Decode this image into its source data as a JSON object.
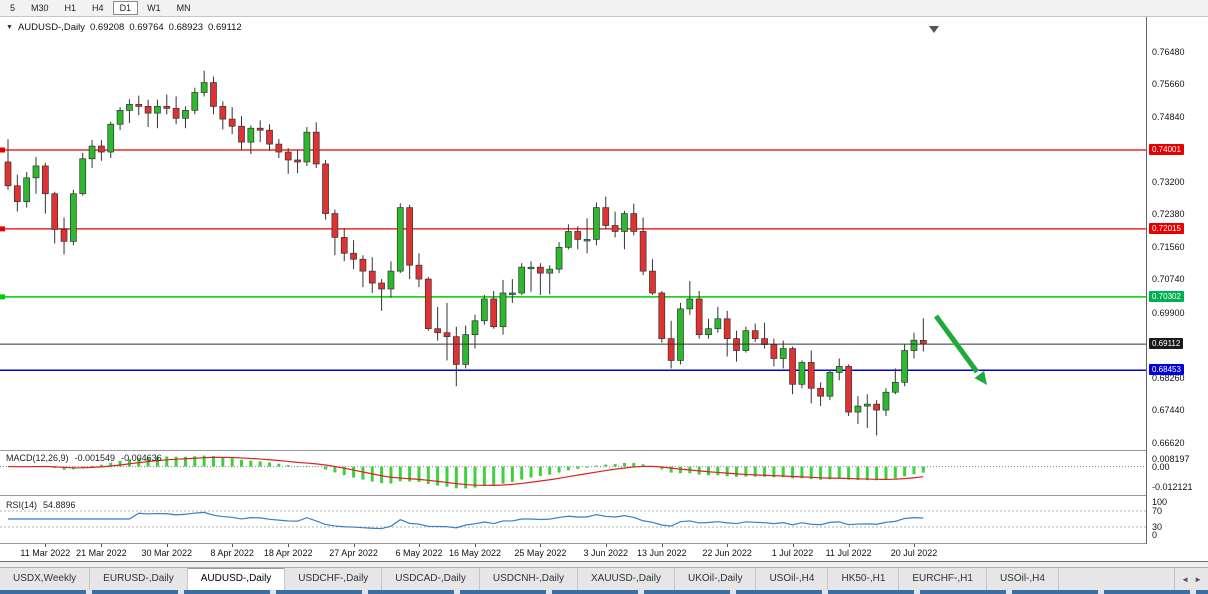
{
  "toolbar": {
    "timeframes": [
      {
        "label": "5",
        "selected": false
      },
      {
        "label": "M30",
        "selected": false
      },
      {
        "label": "H1",
        "selected": false
      },
      {
        "label": "H4",
        "selected": false
      },
      {
        "label": "D1",
        "selected": true
      },
      {
        "label": "W1",
        "selected": false
      },
      {
        "label": "MN",
        "selected": false
      }
    ]
  },
  "chart": {
    "header": {
      "dropdown_icon": "▼",
      "symbol": "AUDUSD-,Daily",
      "open": "0.69208",
      "high": "0.69764",
      "low": "0.68923",
      "close": "0.69112"
    },
    "colors": {
      "bull": "#2eb82e",
      "bear": "#e03232",
      "wick": "#333333",
      "macd": "#3fd03f",
      "signal": "#dd2222",
      "rsi": "#3b7dc4"
    },
    "price_axis": {
      "ticks": [
        "0.76480",
        "0.75660",
        "0.74840",
        "0.73200",
        "0.72380",
        "0.71560",
        "0.70740",
        "0.69900",
        "0.68260",
        "0.67440",
        "0.66620"
      ]
    },
    "levels": [
      {
        "label": "0.74001",
        "value": 0.74001,
        "color": "#e60000",
        "tag": "#e60000",
        "width": 1.2,
        "marker": true
      },
      {
        "label": "0.72015",
        "value": 0.72015,
        "color": "#e60000",
        "tag": "#e60000",
        "width": 1.2,
        "marker": true
      },
      {
        "label": "0.70302",
        "value": 0.70302,
        "color": "#00cc00",
        "tag": "#00b050",
        "width": 1.4,
        "marker": true
      },
      {
        "label": "0.69112",
        "value": 0.69112,
        "color": "#333333",
        "tag": "#1a1a1a",
        "width": 1,
        "above": true
      },
      {
        "label": "0.68453",
        "value": 0.68453,
        "color": "#0000d9",
        "tag": "#0000d9",
        "width": 1.5
      }
    ],
    "arrow": {
      "shape": "arrow",
      "direction": "down-right",
      "color": "#1faa3c"
    }
  },
  "chart_data": {
    "type": "candlestick",
    "title": "AUDUSD-,Daily",
    "symbol": "AUDUSD",
    "timeframe": "Daily",
    "candles": [
      [
        "7 Mar",
        0.737,
        0.7427,
        0.73,
        0.731
      ],
      [
        "8 Mar",
        0.731,
        0.7338,
        0.7245,
        0.727
      ],
      [
        "9 Mar",
        0.727,
        0.7345,
        0.7255,
        0.733
      ],
      [
        "10 Mar",
        0.733,
        0.7383,
        0.729,
        0.736
      ],
      [
        "11 Mar",
        0.736,
        0.7368,
        0.724,
        0.729
      ],
      [
        "14 Mar",
        0.729,
        0.7295,
        0.7165,
        0.72
      ],
      [
        "15 Mar",
        0.72,
        0.723,
        0.7137,
        0.717
      ],
      [
        "16 Mar",
        0.717,
        0.73,
        0.716,
        0.729
      ],
      [
        "17 Mar",
        0.729,
        0.7393,
        0.7285,
        0.7378
      ],
      [
        "18 Mar",
        0.7378,
        0.7425,
        0.7355,
        0.741
      ],
      [
        "21 Mar",
        0.741,
        0.7425,
        0.7373,
        0.7395
      ],
      [
        "22 Mar",
        0.7395,
        0.7471,
        0.738,
        0.7465
      ],
      [
        "23 Mar",
        0.7465,
        0.7508,
        0.745,
        0.75
      ],
      [
        "24 Mar",
        0.75,
        0.7528,
        0.7468,
        0.7515
      ],
      [
        "25 Mar",
        0.7515,
        0.7537,
        0.7488,
        0.751
      ],
      [
        "28 Mar",
        0.751,
        0.7527,
        0.7458,
        0.7493
      ],
      [
        "29 Mar",
        0.7493,
        0.7527,
        0.7455,
        0.751
      ],
      [
        "30 Mar",
        0.751,
        0.754,
        0.749,
        0.7505
      ],
      [
        "31 Mar",
        0.7505,
        0.7535,
        0.7465,
        0.748
      ],
      [
        "1 Apr",
        0.748,
        0.751,
        0.7455,
        0.75
      ],
      [
        "4 Apr",
        0.75,
        0.7557,
        0.749,
        0.7545
      ],
      [
        "5 Apr",
        0.7545,
        0.76,
        0.7535,
        0.757
      ],
      [
        "6 Apr",
        0.757,
        0.7585,
        0.749,
        0.751
      ],
      [
        "7 Apr",
        0.751,
        0.7523,
        0.7452,
        0.7478
      ],
      [
        "8 Apr",
        0.7478,
        0.7508,
        0.744,
        0.746
      ],
      [
        "11 Apr",
        0.746,
        0.7485,
        0.74,
        0.742
      ],
      [
        "12 Apr",
        0.742,
        0.7462,
        0.739,
        0.7455
      ],
      [
        "13 Apr",
        0.7455,
        0.7475,
        0.742,
        0.745
      ],
      [
        "14 Apr",
        0.745,
        0.7465,
        0.7398,
        0.7415
      ],
      [
        "15 Apr",
        0.7415,
        0.7428,
        0.738,
        0.7395
      ],
      [
        "18 Apr",
        0.7395,
        0.7405,
        0.734,
        0.7375
      ],
      [
        "19 Apr",
        0.7375,
        0.74,
        0.7342,
        0.737
      ],
      [
        "20 Apr",
        0.737,
        0.7458,
        0.736,
        0.7445
      ],
      [
        "21 Apr",
        0.7445,
        0.747,
        0.7355,
        0.7365
      ],
      [
        "22 Apr",
        0.7365,
        0.7375,
        0.7225,
        0.724
      ],
      [
        "25 Apr",
        0.724,
        0.725,
        0.7135,
        0.718
      ],
      [
        "26 Apr",
        0.718,
        0.7203,
        0.712,
        0.714
      ],
      [
        "27 Apr",
        0.714,
        0.7173,
        0.71,
        0.7125
      ],
      [
        "28 Apr",
        0.7125,
        0.7135,
        0.7055,
        0.7095
      ],
      [
        "29 Apr",
        0.7095,
        0.713,
        0.704,
        0.7065
      ],
      [
        "2 May",
        0.7065,
        0.7075,
        0.6995,
        0.705
      ],
      [
        "3 May",
        0.705,
        0.712,
        0.7028,
        0.7095
      ],
      [
        "4 May",
        0.7095,
        0.7266,
        0.709,
        0.7255
      ],
      [
        "5 May",
        0.7255,
        0.7262,
        0.7075,
        0.711
      ],
      [
        "6 May",
        0.711,
        0.714,
        0.7055,
        0.7075
      ],
      [
        "9 May",
        0.7075,
        0.708,
        0.6945,
        0.695
      ],
      [
        "10 May",
        0.695,
        0.7005,
        0.692,
        0.694
      ],
      [
        "11 May",
        0.694,
        0.7015,
        0.687,
        0.693
      ],
      [
        "12 May",
        0.693,
        0.6955,
        0.6805,
        0.686
      ],
      [
        "13 May",
        0.686,
        0.6958,
        0.685,
        0.6935
      ],
      [
        "16 May",
        0.6935,
        0.6985,
        0.69,
        0.697
      ],
      [
        "17 May",
        0.697,
        0.7035,
        0.696,
        0.7025
      ],
      [
        "18 May",
        0.7025,
        0.7045,
        0.695,
        0.6955
      ],
      [
        "19 May",
        0.6955,
        0.7073,
        0.6935,
        0.704
      ],
      [
        "20 May",
        0.704,
        0.7075,
        0.7015,
        0.704
      ],
      [
        "23 May",
        0.704,
        0.7115,
        0.7035,
        0.7105
      ],
      [
        "24 May",
        0.7105,
        0.712,
        0.7043,
        0.7105
      ],
      [
        "25 May",
        0.7105,
        0.7115,
        0.7035,
        0.709
      ],
      [
        "26 May",
        0.709,
        0.711,
        0.7037,
        0.71
      ],
      [
        "27 May",
        0.71,
        0.7168,
        0.709,
        0.7155
      ],
      [
        "30 May",
        0.7155,
        0.7213,
        0.715,
        0.7195
      ],
      [
        "31 May",
        0.7195,
        0.7208,
        0.715,
        0.7175
      ],
      [
        "1 Jun",
        0.7175,
        0.7228,
        0.714,
        0.7175
      ],
      [
        "2 Jun",
        0.7175,
        0.7268,
        0.716,
        0.7255
      ],
      [
        "3 Jun",
        0.7255,
        0.7283,
        0.72,
        0.721
      ],
      [
        "6 Jun",
        0.721,
        0.7245,
        0.718,
        0.7195
      ],
      [
        "7 Jun",
        0.7195,
        0.7247,
        0.715,
        0.724
      ],
      [
        "8 Jun",
        0.724,
        0.7265,
        0.7185,
        0.7195
      ],
      [
        "9 Jun",
        0.7195,
        0.723,
        0.7085,
        0.7095
      ],
      [
        "10 Jun",
        0.7095,
        0.7125,
        0.7035,
        0.704
      ],
      [
        "13 Jun",
        0.704,
        0.7045,
        0.6915,
        0.6925
      ],
      [
        "14 Jun",
        0.6925,
        0.697,
        0.685,
        0.687
      ],
      [
        "15 Jun",
        0.687,
        0.7015,
        0.686,
        0.7
      ],
      [
        "16 Jun",
        0.7,
        0.707,
        0.6985,
        0.7025
      ],
      [
        "17 Jun",
        0.7025,
        0.7045,
        0.6925,
        0.6935
      ],
      [
        "20 Jun",
        0.6935,
        0.6975,
        0.6925,
        0.695
      ],
      [
        "21 Jun",
        0.695,
        0.7005,
        0.694,
        0.6975
      ],
      [
        "22 Jun",
        0.6975,
        0.6995,
        0.688,
        0.6925
      ],
      [
        "23 Jun",
        0.6925,
        0.6945,
        0.6867,
        0.6895
      ],
      [
        "24 Jun",
        0.6895,
        0.6955,
        0.689,
        0.6945
      ],
      [
        "27 Jun",
        0.6945,
        0.6963,
        0.6917,
        0.6925
      ],
      [
        "28 Jun",
        0.6925,
        0.6965,
        0.69,
        0.691
      ],
      [
        "29 Jun",
        0.691,
        0.6925,
        0.6855,
        0.6875
      ],
      [
        "30 Jun",
        0.6875,
        0.692,
        0.685,
        0.69
      ],
      [
        "1 Jul",
        0.69,
        0.6905,
        0.6785,
        0.681
      ],
      [
        "4 Jul",
        0.681,
        0.687,
        0.68,
        0.6865
      ],
      [
        "5 Jul",
        0.6865,
        0.6895,
        0.6762,
        0.68
      ],
      [
        "6 Jul",
        0.68,
        0.6815,
        0.6755,
        0.678
      ],
      [
        "7 Jul",
        0.678,
        0.6845,
        0.677,
        0.684
      ],
      [
        "8 Jul",
        0.684,
        0.6875,
        0.682,
        0.6855
      ],
      [
        "11 Jul",
        0.6855,
        0.686,
        0.673,
        0.674
      ],
      [
        "12 Jul",
        0.674,
        0.678,
        0.671,
        0.6755
      ],
      [
        "13 Jul",
        0.6755,
        0.6785,
        0.67,
        0.676
      ],
      [
        "14 Jul",
        0.676,
        0.677,
        0.6681,
        0.6745
      ],
      [
        "15 Jul",
        0.6745,
        0.68,
        0.673,
        0.679
      ],
      [
        "18 Jul",
        0.679,
        0.685,
        0.6785,
        0.6815
      ],
      [
        "19 Jul",
        0.6815,
        0.691,
        0.6805,
        0.6895
      ],
      [
        "20 Jul",
        0.6895,
        0.694,
        0.6875,
        0.6921
      ],
      [
        "21 Jul",
        0.69208,
        0.69764,
        0.68923,
        0.69112
      ]
    ],
    "x_labels": [
      {
        "i": 4,
        "t": "11 Mar 2022"
      },
      {
        "i": 10,
        "t": "21 Mar 2022"
      },
      {
        "i": 17,
        "t": "30 Mar 2022"
      },
      {
        "i": 24,
        "t": "8 Apr 2022"
      },
      {
        "i": 30,
        "t": "18 Apr 2022"
      },
      {
        "i": 37,
        "t": "27 Apr 2022"
      },
      {
        "i": 44,
        "t": "6 May 2022"
      },
      {
        "i": 50,
        "t": "16 May 2022"
      },
      {
        "i": 57,
        "t": "25 May 2022"
      },
      {
        "i": 64,
        "t": "3 Jun 2022"
      },
      {
        "i": 70,
        "t": "13 Jun 2022"
      },
      {
        "i": 77,
        "t": "22 Jun 2022"
      },
      {
        "i": 84,
        "t": "1 Jul 2022"
      },
      {
        "i": 90,
        "t": "11 Jul 2022"
      },
      {
        "i": 97,
        "t": "20 Jul 2022"
      }
    ],
    "indicators": {
      "macd": {
        "name": "MACD(12,26,9)",
        "value1": "-0.001549",
        "value2": "-0.004636",
        "params": [
          12,
          26,
          9
        ],
        "scale": [
          "0.008197",
          "0.00",
          "-0.012121"
        ]
      },
      "rsi": {
        "name": "RSI(14)",
        "value": "54.8896",
        "period": 14,
        "scale": [
          "100",
          "70",
          "30",
          "0"
        ]
      }
    }
  },
  "tabbar": {
    "nav_left": "◄",
    "nav_right": "►",
    "tabs": [
      {
        "label": "USDX,Weekly",
        "active": false
      },
      {
        "label": "EURUSD-,Daily",
        "active": false
      },
      {
        "label": "AUDUSD-,Daily",
        "active": true
      },
      {
        "label": "USDCHF-,Daily",
        "active": false
      },
      {
        "label": "USDCAD-,Daily",
        "active": false
      },
      {
        "label": "USDCNH-,Daily",
        "active": false
      },
      {
        "label": "XAUUSD-,Daily",
        "active": false
      },
      {
        "label": "UKOil-,Daily",
        "active": false
      },
      {
        "label": "USOil-,H4",
        "active": false
      },
      {
        "label": "HK50-,H1",
        "active": false
      },
      {
        "label": "EURCHF-,H1",
        "active": false
      },
      {
        "label": "USOil-,H4",
        "active": false
      }
    ]
  }
}
